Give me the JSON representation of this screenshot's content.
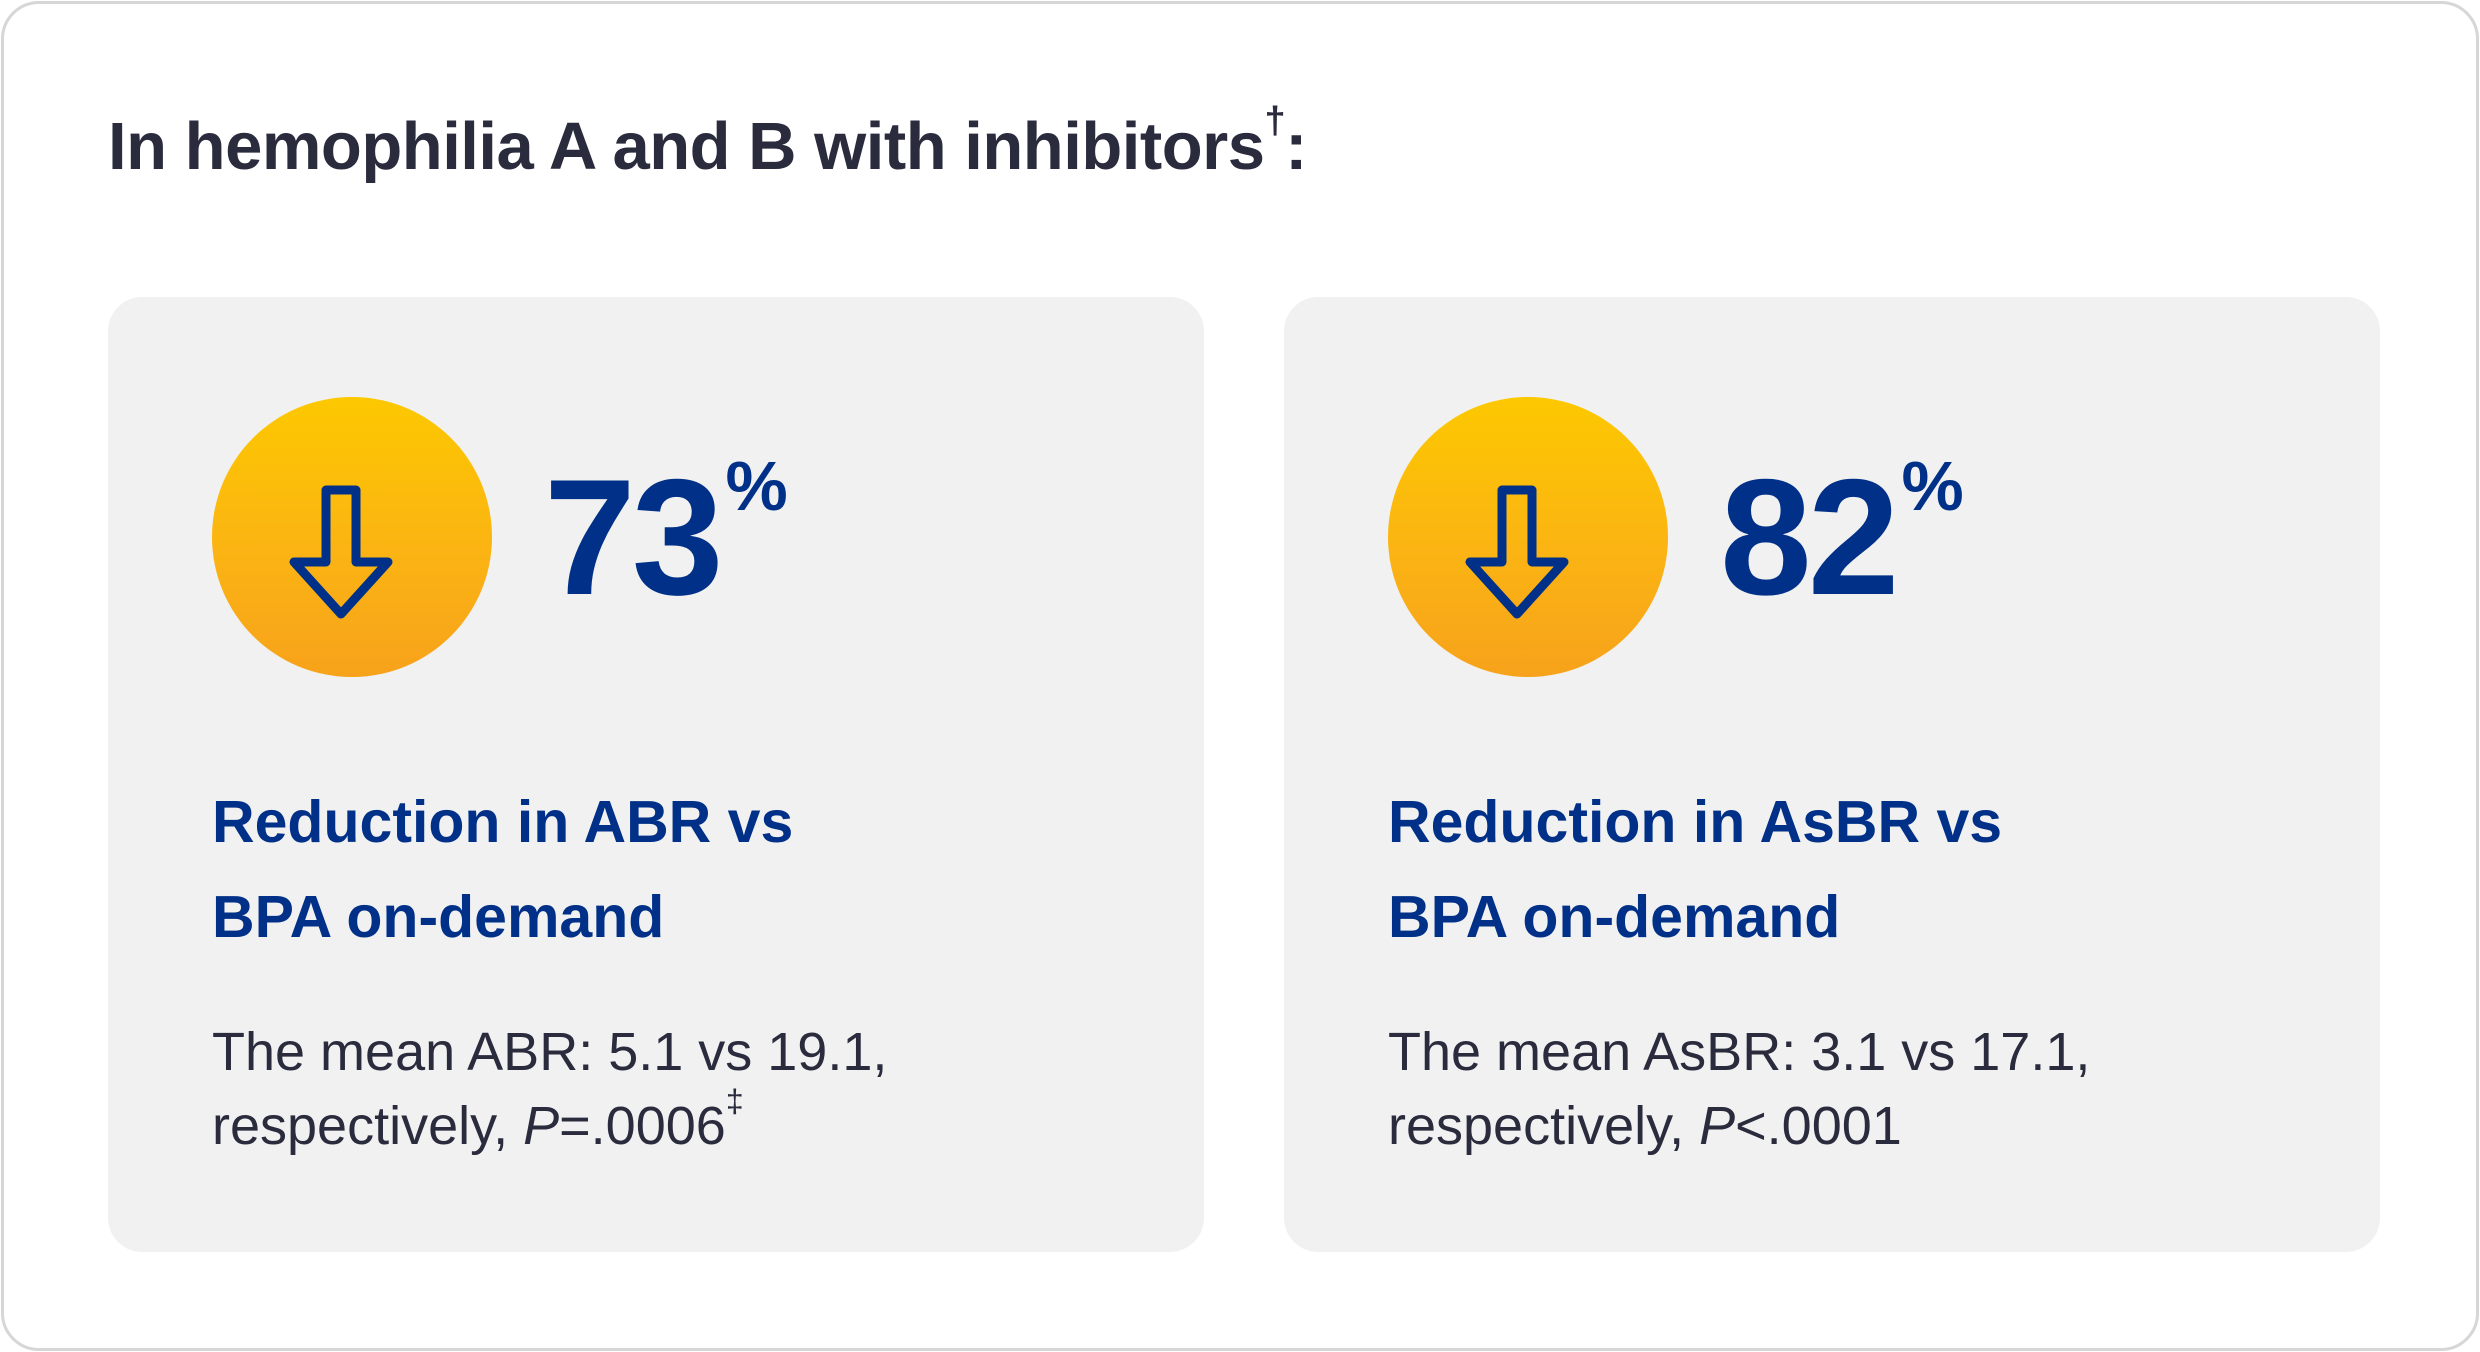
{
  "heading": {
    "text": "In hemophilia A and B with inhibitors",
    "footnote_mark": "†",
    "suffix": ":"
  },
  "cards": [
    {
      "icon": "down-arrow-icon",
      "value": "73",
      "unit": "%",
      "subtitle_line1": "Reduction in ABR vs",
      "subtitle_line2": "BPA on-demand",
      "note_line1": "The mean ABR: 5.1 vs 19.1,",
      "note_prefix": "respectively, ",
      "note_p": "P",
      "note_pvalue": "=.0006",
      "note_footnote": "‡"
    },
    {
      "icon": "down-arrow-icon",
      "value": "82",
      "unit": "%",
      "subtitle_line1": "Reduction in AsBR vs",
      "subtitle_line2": "BPA on-demand",
      "note_line1": "The mean AsBR: 3.1 vs 17.1,",
      "note_prefix": "respectively, ",
      "note_p": "P",
      "note_pvalue": "<.0001",
      "note_footnote": ""
    }
  ],
  "colors": {
    "heading": "#2a2b3d",
    "accent_blue": "#003087",
    "badge_top": "#fcc800",
    "badge_bottom": "#f7a21b",
    "card_bg": "#f1f1f1",
    "frame_border": "#d6d6d6"
  }
}
